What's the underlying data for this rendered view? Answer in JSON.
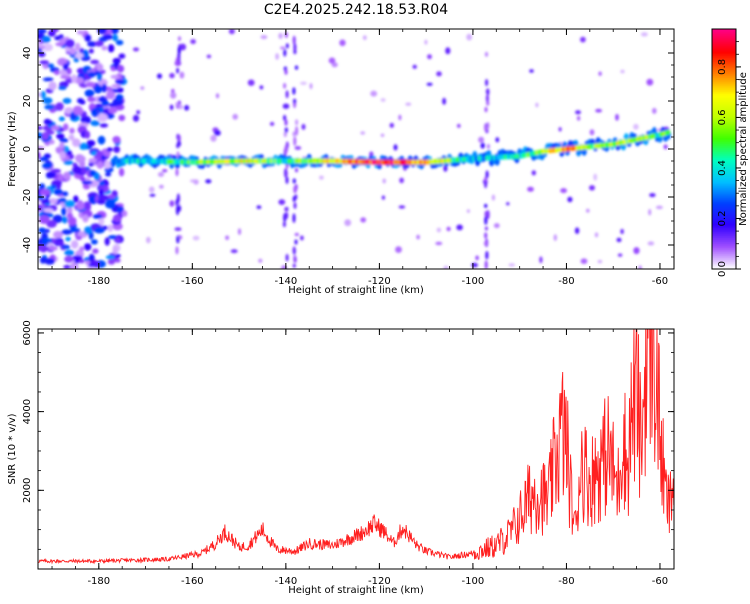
{
  "figure": {
    "title": "C2E4.2025.242.18.53.R04"
  },
  "chart_data": [
    {
      "type": "heatmap",
      "xlabel": "Height of straight line (km)",
      "ylabel": "Frequency (Hz)",
      "xlim": [
        -193,
        -57
      ],
      "ylim": [
        -50,
        50
      ],
      "x_ticks": [
        -180,
        -160,
        -140,
        -120,
        -100,
        -80,
        -60
      ],
      "y_ticks": [
        -40,
        -20,
        0,
        20,
        40
      ],
      "grid": false,
      "colorbar": {
        "label": "Normalized spectral amplitude",
        "range": [
          0,
          0.95
        ],
        "ticks": [
          0.0,
          0.2,
          0.4,
          0.6,
          0.8
        ],
        "tick_labels": [
          "0.0",
          "0.2",
          "0.4",
          "0.6",
          "0.8"
        ],
        "colormap": [
          "#ffffff",
          "#a050ff",
          "#3000ff",
          "#0040ff",
          "#00c0ff",
          "#00ffc0",
          "#40ff00",
          "#c0ff00",
          "#ffff00",
          "#ff8000",
          "#ff0000",
          "#ff0080"
        ]
      },
      "ridge": {
        "height_km": [
          -177,
          -170,
          -160,
          -150,
          -140,
          -130,
          -120,
          -110,
          -100,
          -90,
          -85,
          -80,
          -75,
          -70,
          -65,
          -60,
          -58
        ],
        "frequency_hz": [
          -5,
          -5,
          -5.5,
          -5,
          -5,
          -5,
          -5.5,
          -5.5,
          -4,
          -3,
          -1,
          0,
          1,
          2,
          4,
          6,
          7
        ],
        "amplitude": [
          0.3,
          0.4,
          0.5,
          0.65,
          0.45,
          0.7,
          0.9,
          0.75,
          0.35,
          0.4,
          0.55,
          0.85,
          0.5,
          0.6,
          0.55,
          0.45,
          0.5
        ]
      },
      "noise_region_km": [
        -193,
        -175
      ]
    },
    {
      "type": "line",
      "xlabel": "Height of straight line (km)",
      "ylabel": "SNR (10 * v/v)",
      "xlim": [
        -193,
        -57
      ],
      "ylim": [
        0,
        6100
      ],
      "x_ticks": [
        -180,
        -160,
        -140,
        -120,
        -100,
        -80,
        -60
      ],
      "y_ticks": [
        2000,
        4000,
        6000
      ],
      "grid": false,
      "series": [
        {
          "color": "#ff2020",
          "x": [
            -193,
            -180,
            -165,
            -158,
            -155,
            -153,
            -150,
            -148,
            -145,
            -142,
            -138,
            -135,
            -130,
            -127,
            -124,
            -121,
            -119,
            -117,
            -115,
            -112,
            -110,
            -105,
            -100,
            -95,
            -92,
            -90,
            -88,
            -86,
            -84,
            -82,
            -81,
            -80,
            -79,
            -78,
            -77,
            -75,
            -73,
            -71,
            -69,
            -68,
            -67,
            -66,
            -65,
            -64,
            -63,
            -62,
            -61,
            -60,
            -59,
            -58,
            -57
          ],
          "y": [
            200,
            200,
            250,
            400,
            650,
            950,
            550,
            600,
            1000,
            500,
            450,
            650,
            600,
            750,
            900,
            1150,
            950,
            650,
            1050,
            600,
            450,
            300,
            400,
            600,
            900,
            1300,
            1800,
            2000,
            1700,
            3000,
            3500,
            3200,
            1800,
            1000,
            2800,
            2200,
            2600,
            3000,
            2000,
            3600,
            2500,
            4000,
            4500,
            3000,
            5500,
            6000,
            5200,
            3500,
            2000,
            1500,
            2300
          ]
        }
      ]
    }
  ]
}
